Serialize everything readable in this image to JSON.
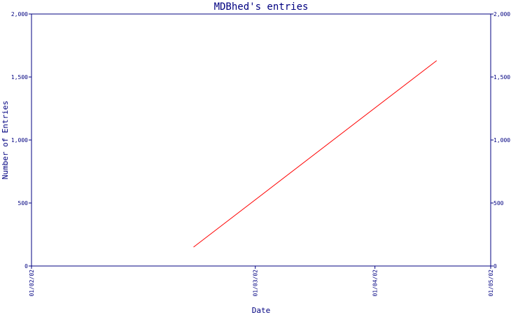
{
  "chart_data": {
    "type": "line",
    "title": "MDBhed's entries",
    "xlabel": "Date",
    "ylabel": "Number of Entries",
    "x_ticks": [
      "01/02/02",
      "01/03/02",
      "01/04/02",
      "01/05/02"
    ],
    "y_ticks": [
      "0",
      "500",
      "1,000",
      "1,500",
      "2,000"
    ],
    "ylim": [
      0,
      2000
    ],
    "xlim": [
      "2002-01-02",
      "2002-05-01"
    ],
    "grid": false,
    "series": [
      {
        "color": "#ff0000",
        "points": [
          {
            "x": "2002-02-13",
            "y": 150
          },
          {
            "x": "2002-04-17",
            "y": 1630
          }
        ]
      }
    ]
  },
  "colors": {
    "axis": "#000080",
    "background": "#ffffff"
  }
}
